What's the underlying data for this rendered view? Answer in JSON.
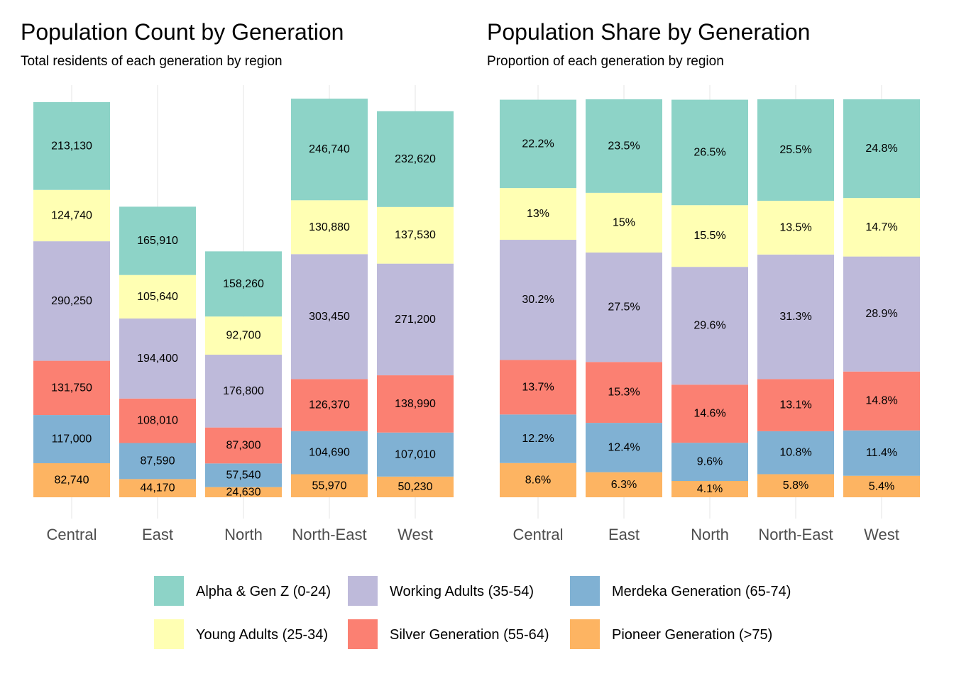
{
  "colors": {
    "Alpha & Gen Z (0-24)": "#8DD3C7",
    "Young Adults (25-34)": "#FFFFB3",
    "Working Adults (35-54)": "#BEBADA",
    "Silver Generation (55-64)": "#FB8072",
    "Merdeka Generation (65-74)": "#80B1D3",
    "Pioneer Generation (>75)": "#FDB462"
  },
  "legend": {
    "position": "bottom",
    "items": [
      "Alpha & Gen Z (0-24)",
      "Working Adults (35-54)",
      "Merdeka Generation (65-74)",
      "Young Adults (25-34)",
      "Silver Generation (55-64)",
      "Pioneer Generation (>75)"
    ]
  },
  "chart_data": [
    {
      "type": "bar",
      "stacked": true,
      "title": "Population Count by Generation",
      "subtitle": "Total residents of each generation by region",
      "xlabel": "",
      "ylabel": "",
      "grid": true,
      "categories": [
        "Central",
        "East",
        "North",
        "North-East",
        "West"
      ],
      "series": [
        {
          "name": "Pioneer Generation (>75)",
          "values": [
            82740,
            44170,
            24630,
            55970,
            50230
          ],
          "labels": [
            "82,740",
            "44,170",
            "24,630",
            "55,970",
            "50,230"
          ]
        },
        {
          "name": "Merdeka Generation (65-74)",
          "values": [
            117000,
            87590,
            57540,
            104690,
            107010
          ],
          "labels": [
            "117,000",
            "87,590",
            "57,540",
            "104,690",
            "107,010"
          ]
        },
        {
          "name": "Silver Generation (55-64)",
          "values": [
            131750,
            108010,
            87300,
            126370,
            138990
          ],
          "labels": [
            "131,750",
            "108,010",
            "87,300",
            "126,370",
            "138,990"
          ]
        },
        {
          "name": "Working Adults (35-54)",
          "values": [
            290250,
            194400,
            176800,
            303450,
            271200
          ],
          "labels": [
            "290,250",
            "194,400",
            "176,800",
            "303,450",
            "271,200"
          ]
        },
        {
          "name": "Young Adults (25-34)",
          "values": [
            124740,
            105640,
            92700,
            130880,
            137530
          ],
          "labels": [
            "124,740",
            "105,640",
            "92,700",
            "130,880",
            "137,530"
          ]
        },
        {
          "name": "Alpha & Gen Z (0-24)",
          "values": [
            213130,
            165910,
            158260,
            246740,
            232620
          ],
          "labels": [
            "213,130",
            "165,910",
            "158,260",
            "246,740",
            "232,620"
          ]
        }
      ]
    },
    {
      "type": "bar",
      "stacked": true,
      "title": "Population Share by Generation",
      "subtitle": "Proportion of each generation by region",
      "xlabel": "",
      "ylabel": "",
      "grid": true,
      "categories": [
        "Central",
        "East",
        "North",
        "North-East",
        "West"
      ],
      "series": [
        {
          "name": "Pioneer Generation (>75)",
          "values": [
            8.6,
            6.3,
            4.1,
            5.8,
            5.4
          ],
          "labels": [
            "8.6%",
            "6.3%",
            "4.1%",
            "5.8%",
            "5.4%"
          ]
        },
        {
          "name": "Merdeka Generation (65-74)",
          "values": [
            12.2,
            12.4,
            9.6,
            10.8,
            11.4
          ],
          "labels": [
            "12.2%",
            "12.4%",
            "9.6%",
            "10.8%",
            "11.4%"
          ]
        },
        {
          "name": "Silver Generation (55-64)",
          "values": [
            13.7,
            15.3,
            14.6,
            13.1,
            14.8
          ],
          "labels": [
            "13.7%",
            "15.3%",
            "14.6%",
            "13.1%",
            "14.8%"
          ]
        },
        {
          "name": "Working Adults (35-54)",
          "values": [
            30.2,
            27.5,
            29.6,
            31.3,
            28.9
          ],
          "labels": [
            "30.2%",
            "27.5%",
            "29.6%",
            "31.3%",
            "28.9%"
          ]
        },
        {
          "name": "Young Adults (25-34)",
          "values": [
            13,
            15,
            15.5,
            13.5,
            14.7
          ],
          "labels": [
            "13%",
            "15%",
            "15.5%",
            "13.5%",
            "14.7%"
          ]
        },
        {
          "name": "Alpha & Gen Z (0-24)",
          "values": [
            22.2,
            23.5,
            26.5,
            25.5,
            24.8
          ],
          "labels": [
            "22.2%",
            "23.5%",
            "26.5%",
            "25.5%",
            "24.8%"
          ]
        }
      ]
    }
  ]
}
